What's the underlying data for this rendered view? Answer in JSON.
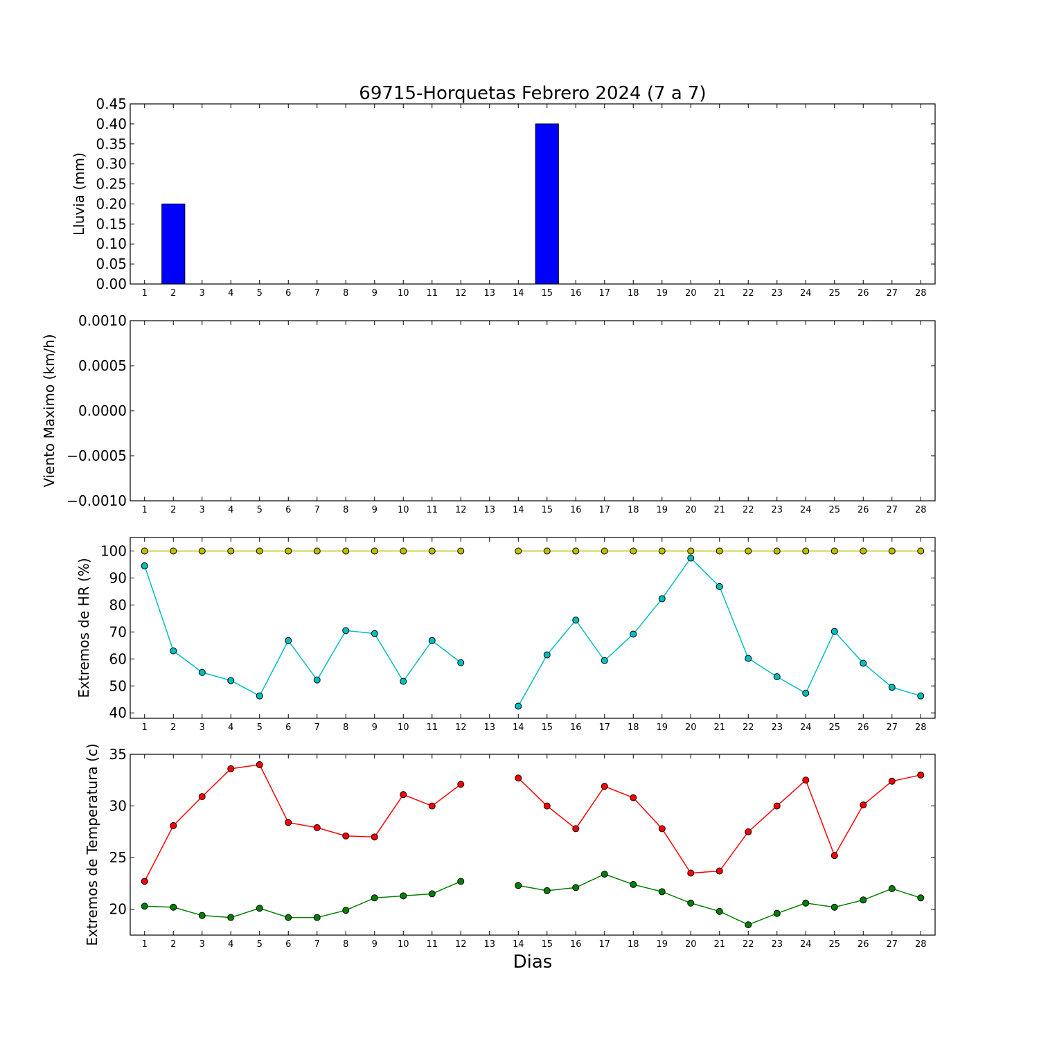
{
  "chart_title": "69715-Horquetas Febrero 2024  (7 a 7)",
  "x_axis_label": "Dias",
  "colors": {
    "rain_bar": "#0000ff",
    "hr_max": "#bfbf00",
    "hr_min": "#00bfbf",
    "temp_max": "#ff0000",
    "temp_min": "#008000"
  },
  "chart_data": [
    {
      "type": "bar",
      "ylabel": "Lluvia (mm)",
      "ylim": [
        0,
        0.45
      ],
      "yticks": [
        "0.00",
        "0.05",
        "0.10",
        "0.15",
        "0.20",
        "0.25",
        "0.30",
        "0.35",
        "0.40",
        "0.45"
      ],
      "xticks": [
        1,
        2,
        3,
        4,
        5,
        6,
        7,
        8,
        9,
        10,
        11,
        12,
        13,
        14,
        15,
        16,
        17,
        18,
        19,
        20,
        21,
        22,
        23,
        24,
        25,
        26,
        27,
        28
      ],
      "x": [
        1,
        2,
        3,
        4,
        5,
        6,
        7,
        8,
        9,
        10,
        11,
        12,
        13,
        14,
        15,
        16,
        17,
        18,
        19,
        20,
        21,
        22,
        23,
        24,
        25,
        26,
        27,
        28
      ],
      "values": [
        0,
        0.2,
        0,
        0,
        0,
        0,
        0,
        0,
        0,
        0,
        0,
        0,
        0,
        0,
        0.4,
        0,
        0,
        0,
        0,
        0,
        0,
        0,
        0,
        0,
        0,
        0,
        0,
        0
      ]
    },
    {
      "type": "line",
      "ylabel": "Viento Maximo (km/h)",
      "ylim": [
        -0.001,
        0.001
      ],
      "yticks": [
        "0.0010",
        "0.0005",
        "0.0000",
        "−0.0005",
        "−0.0010"
      ],
      "xticks": [
        1,
        2,
        3,
        4,
        5,
        6,
        7,
        8,
        9,
        10,
        11,
        12,
        13,
        14,
        15,
        16,
        17,
        18,
        19,
        20,
        21,
        22,
        23,
        24,
        25,
        26,
        27,
        28
      ],
      "series": []
    },
    {
      "type": "line",
      "ylabel": "Extremos de HR (%)",
      "ylim": [
        38,
        105
      ],
      "yticks": [
        "40",
        "50",
        "60",
        "70",
        "80",
        "90",
        "100"
      ],
      "xticks": [
        1,
        2,
        3,
        4,
        5,
        6,
        7,
        8,
        9,
        10,
        11,
        12,
        13,
        14,
        15,
        16,
        17,
        18,
        19,
        20,
        21,
        22,
        23,
        24,
        25,
        26,
        27,
        28
      ],
      "series": [
        {
          "values": [
            100,
            100,
            100,
            100,
            100,
            100,
            100,
            100,
            100,
            100,
            100,
            100,
            null,
            100,
            100,
            100,
            100,
            100,
            100,
            100,
            100,
            100,
            100,
            100,
            100,
            100,
            100,
            100
          ]
        },
        {
          "values": [
            94.5,
            63,
            55,
            52,
            46.3,
            66.8,
            52.2,
            70.5,
            69.4,
            51.7,
            66.8,
            58.6,
            null,
            42.5,
            61.5,
            74.4,
            59.4,
            69.2,
            82.3,
            97.4,
            86.8,
            60.2,
            53.4,
            47.3,
            70.2,
            58.4,
            49.5,
            46.3
          ]
        }
      ]
    },
    {
      "type": "line",
      "ylabel": "Extremos de Temperatura (c)",
      "ylim": [
        17.5,
        35
      ],
      "yticks": [
        "20",
        "25",
        "30",
        "35"
      ],
      "xticks": [
        1,
        2,
        3,
        4,
        5,
        6,
        7,
        8,
        9,
        10,
        11,
        12,
        13,
        14,
        15,
        16,
        17,
        18,
        19,
        20,
        21,
        22,
        23,
        24,
        25,
        26,
        27,
        28
      ],
      "series": [
        {
          "values": [
            22.7,
            28.1,
            30.9,
            33.6,
            34,
            28.4,
            27.9,
            27.1,
            27,
            31.1,
            30,
            32.1,
            null,
            32.7,
            30,
            27.8,
            31.9,
            30.8,
            27.8,
            23.5,
            23.7,
            27.5,
            30,
            32.5,
            25.2,
            30.1,
            32.4,
            33
          ]
        },
        {
          "values": [
            20.3,
            20.2,
            19.4,
            19.2,
            20.1,
            19.2,
            19.2,
            19.9,
            21.1,
            21.3,
            21.5,
            22.7,
            null,
            22.3,
            21.8,
            22.1,
            23.4,
            22.4,
            21.7,
            20.6,
            19.8,
            18.5,
            19.6,
            20.6,
            20.2,
            20.9,
            22,
            21.1
          ]
        }
      ]
    }
  ]
}
